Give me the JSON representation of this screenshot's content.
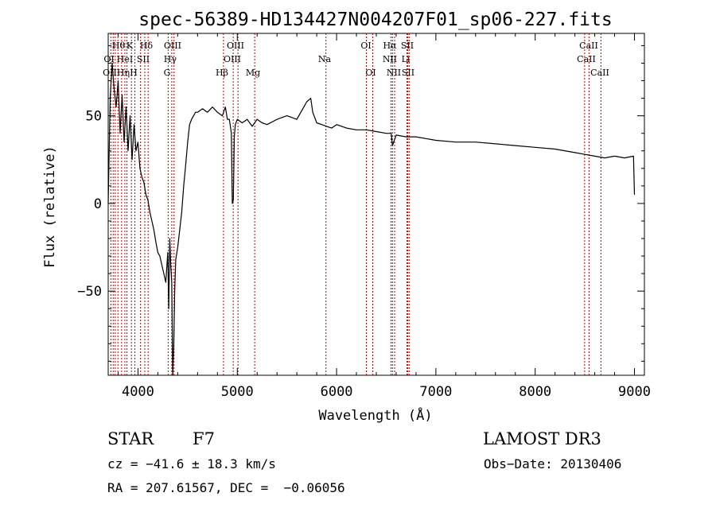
{
  "chart_data": {
    "type": "line",
    "title": "spec-56389-HD134427N004207F01_sp06-227.fits",
    "xlabel": "Wavelength (Å)",
    "ylabel": "Flux (relative)",
    "xlim": [
      3700,
      9100
    ],
    "ylim": [
      -98,
      97
    ],
    "xticks": [
      4000,
      5000,
      6000,
      7000,
      8000,
      9000
    ],
    "yticks": [
      -50,
      0,
      50
    ],
    "grid": false,
    "series": [
      {
        "x": [
          3700,
          3720,
          3740,
          3760,
          3780,
          3800,
          3820,
          3840,
          3860,
          3880,
          3900,
          3920,
          3940,
          3960,
          3980,
          4000,
          4020,
          4040,
          4060,
          4080,
          4100,
          4120,
          4140,
          4160,
          4180,
          4200,
          4220,
          4240,
          4260,
          4280,
          4300,
          4310,
          4320,
          4330,
          4340,
          4350,
          4360,
          4370,
          4380,
          4400,
          4420,
          4440,
          4460,
          4480,
          4500,
          4520,
          4540,
          4560,
          4580,
          4600,
          4650,
          4700,
          4750,
          4800,
          4850,
          4880,
          4900,
          4920,
          4940,
          4950,
          4960,
          4970,
          4980,
          5000,
          5050,
          5100,
          5150,
          5200,
          5250,
          5300,
          5400,
          5500,
          5600,
          5700,
          5740,
          5760,
          5800,
          5850,
          5900,
          5950,
          6000,
          6100,
          6200,
          6300,
          6400,
          6500,
          6550,
          6563,
          6600,
          6700,
          6800,
          6900,
          7000,
          7200,
          7400,
          7600,
          7800,
          8000,
          8200,
          8400,
          8500,
          8600,
          8700,
          8800,
          8900,
          8990,
          9000
        ],
        "y": [
          0,
          60,
          80,
          65,
          55,
          70,
          40,
          62,
          35,
          55,
          30,
          50,
          25,
          45,
          30,
          35,
          20,
          15,
          12,
          5,
          2,
          -5,
          -10,
          -15,
          -22,
          -28,
          -30,
          -35,
          -40,
          -45,
          -28,
          -60,
          -20,
          -35,
          -45,
          -98,
          -80,
          -50,
          -32,
          -25,
          -15,
          -5,
          10,
          22,
          35,
          45,
          48,
          50,
          52,
          52,
          54,
          52,
          55,
          52,
          50,
          55,
          48,
          48,
          40,
          0,
          2,
          38,
          45,
          48,
          46,
          48,
          44,
          48,
          46,
          45,
          48,
          50,
          48,
          58,
          60,
          52,
          46,
          45,
          44,
          43,
          45,
          43,
          42,
          42,
          41,
          40,
          40,
          33,
          39,
          38,
          38,
          37,
          36,
          35,
          35,
          34,
          33,
          32,
          31,
          29,
          28,
          27,
          26,
          27,
          26,
          27,
          5
        ]
      }
    ]
  },
  "line_labels": {
    "row1": [
      "Hθ",
      "K",
      "Hδ",
      "OIII",
      "OIII",
      "OI",
      "Hα",
      "SII",
      "CaII"
    ],
    "row2": [
      "OI",
      "HeI",
      "SII",
      "Hγ",
      "OIII",
      "Na",
      "NII",
      "Li",
      "CaII"
    ],
    "row3": [
      "OII",
      "Hη",
      "H",
      "G",
      "Hβ",
      "Mg",
      "OI",
      "NII",
      "SII",
      "CaII"
    ]
  },
  "info": {
    "object_class": "STAR",
    "subclass": "F7",
    "survey": "LAMOST DR3",
    "cz": "cz = −41.6 ± 18.3 km/s",
    "obs_date": "Obs−Date: 20130406",
    "coords": "RA = 207.61567, DEC =  −0.06056"
  },
  "colors": {
    "spectrum": "#000000",
    "line_markers": "#c00000",
    "axes": "#000000"
  }
}
